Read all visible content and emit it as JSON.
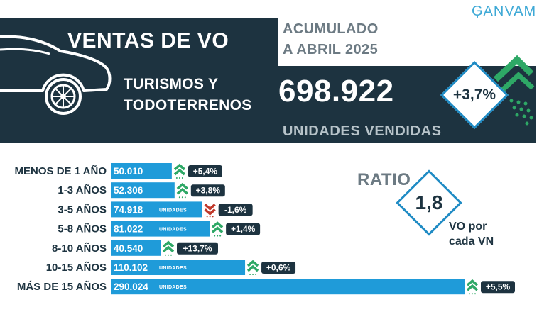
{
  "header": {
    "title": "VENTAS DE VO",
    "segment": "TURISMOS Y\nTODOTERRENOS",
    "period": "ACUMULADO\nA ABRIL 2025",
    "brand": "ĢANVAM",
    "total": "698.922",
    "total_label": "UNIDADES VENDIDAS",
    "growth": "+3,7%"
  },
  "ratio": {
    "title": "RATIO",
    "value": "1,8",
    "caption": "VO por\ncada VN"
  },
  "colors": {
    "navy": "#1d3340",
    "bar": "#1f9bd9",
    "up": "#2ea866",
    "down": "#c0392b",
    "badge": "#1d3340"
  },
  "chart_data": {
    "type": "bar",
    "orientation": "horizontal",
    "categories": [
      "MENOS DE 1 AÑO",
      "1-3 AÑOS",
      "3-5 AÑOS",
      "5-8 AÑOS",
      "8-10 AÑOS",
      "10-15 AÑOS",
      "MÁS DE 15 AÑOS"
    ],
    "values": [
      50010,
      52306,
      74918,
      81022,
      40540,
      110102,
      290024
    ],
    "value_labels": [
      "50.010",
      "52.306",
      "74.918",
      "81.022",
      "40.540",
      "110.102",
      "290.024"
    ],
    "unit_label": "UNIDADES",
    "changes": [
      "+5,4%",
      "+3,8%",
      "-1,6%",
      "+1,4%",
      "+13,7%",
      "+0,6%",
      "+5,5%"
    ],
    "directions": [
      "up",
      "up",
      "down",
      "up",
      "up",
      "up",
      "up"
    ],
    "xlim": [
      0,
      290024
    ],
    "title": "",
    "xlabel": "",
    "ylabel": ""
  }
}
